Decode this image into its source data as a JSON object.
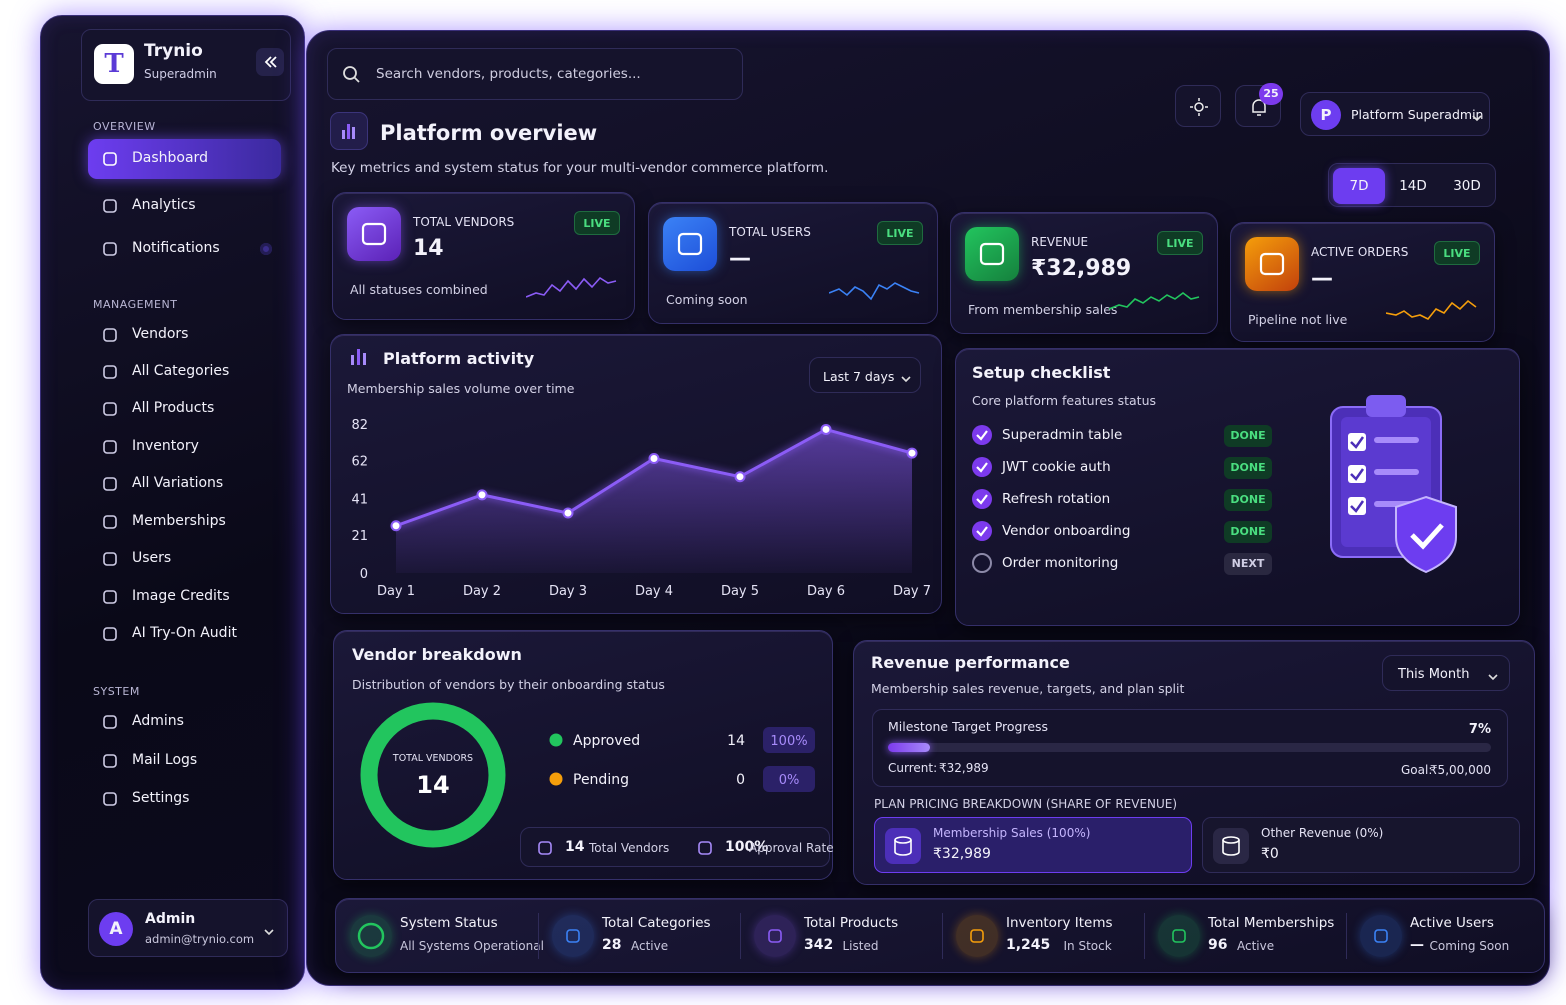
{
  "sidebar": {
    "logo": "T",
    "brand": "Trynio",
    "role": "Superadmin",
    "sections": [
      {
        "title": "OVERVIEW",
        "items": [
          "Dashboard",
          "Analytics",
          "Notifications"
        ]
      },
      {
        "title": "MANAGEMENT",
        "items": [
          "Vendors",
          "All Categories",
          "All Products",
          "Inventory",
          "All Variations",
          "Memberships",
          "Users",
          "Image Credits",
          "AI Try-On Audit"
        ]
      },
      {
        "title": "SYSTEM",
        "items": [
          "Admins",
          "Mail Logs",
          "Settings"
        ]
      }
    ],
    "user": {
      "initial": "A",
      "name": "Admin",
      "email": "admin@trynio.com"
    }
  },
  "topbar": {
    "search": "Search vendors, products, categories...",
    "notification_count": 25,
    "profile_initial": "P",
    "profile_name": "Platform Superadmin"
  },
  "header": {
    "title": "Platform overview",
    "subtitle": "Key metrics and system status for your multi-vendor commerce platform.",
    "ranges": [
      "7D",
      "14D",
      "30D"
    ]
  },
  "kpis": [
    {
      "label": "TOTAL VENDORS",
      "value": 14,
      "note": "All statuses combined",
      "badge": "LIVE"
    },
    {
      "label": "TOTAL USERS",
      "value": "—",
      "note": "Coming soon",
      "badge": "LIVE"
    },
    {
      "label": "REVENUE",
      "value": "₹32,989",
      "note": "From membership sales",
      "badge": "LIVE"
    },
    {
      "label": "ACTIVE ORDERS",
      "value": "—",
      "note": "Pipeline not live",
      "badge": "LIVE"
    }
  ],
  "chart_data": {
    "type": "line",
    "title": "Platform activity",
    "subtitle": "Membership sales volume over time",
    "filter": "Last 7 days",
    "categories": [
      "Day 1",
      "Day 2",
      "Day 3",
      "Day 4",
      "Day 5",
      "Day 6",
      "Day 7"
    ],
    "values": [
      26,
      43,
      33,
      63,
      53,
      79,
      66
    ],
    "color": "#8b5cf6",
    "ylim": [
      0,
      82
    ],
    "yticks": [
      0,
      21,
      41,
      62,
      82
    ]
  },
  "checklist": {
    "title": "Setup checklist",
    "subtitle": "Core platform features status",
    "items": [
      {
        "label": "Superadmin table",
        "status": "DONE"
      },
      {
        "label": "JWT cookie auth",
        "status": "DONE"
      },
      {
        "label": "Refresh rotation",
        "status": "DONE"
      },
      {
        "label": "Vendor onboarding",
        "status": "DONE"
      },
      {
        "label": "Order monitoring",
        "status": "NEXT"
      }
    ]
  },
  "vendor_breakdown": {
    "title": "Vendor breakdown",
    "subtitle": "Distribution of vendors by their onboarding status",
    "center_label": "TOTAL VENDORS",
    "center_value": 14,
    "segments": [
      {
        "name": "Approved",
        "count": 14,
        "share": "100%",
        "color": "#22c55e"
      },
      {
        "name": "Pending",
        "count": 0,
        "share": "0%",
        "color": "#f59e0b"
      }
    ],
    "footer": [
      {
        "value": 14,
        "label": "Total Vendors"
      },
      {
        "value": "100%",
        "label": "Approval Rate"
      }
    ]
  },
  "revenue": {
    "title": "Revenue performance",
    "subtitle": "Membership sales revenue, targets, and plan split",
    "filter": "This Month",
    "milestone": {
      "title": "Milestone Target Progress",
      "progress": {
        "value": 7,
        "label": "7%"
      },
      "current_label": "Current:",
      "current": "₹32,989",
      "goal_label": "Goal:",
      "goal": "₹5,00,000"
    },
    "breakdown_title": "PLAN PRICING BREAKDOWN (SHARE OF REVENUE)",
    "plans": [
      {
        "name": "Membership Sales (100%)",
        "amount": "₹32,989"
      },
      {
        "name": "Other Revenue (0%)",
        "amount": "₹0"
      }
    ]
  },
  "status_bar": [
    {
      "title": "System Status",
      "detail": "All Systems Operational"
    },
    {
      "title": "Total Categories",
      "value": 28,
      "detail": "Active"
    },
    {
      "title": "Total Products",
      "value": 342,
      "detail": "Listed"
    },
    {
      "title": "Inventory Items",
      "value": "1,245",
      "detail": "In Stock"
    },
    {
      "title": "Total Memberships",
      "value": 96,
      "detail": "Active"
    },
    {
      "title": "Active Users",
      "value": "—",
      "detail": "Coming Soon"
    }
  ]
}
